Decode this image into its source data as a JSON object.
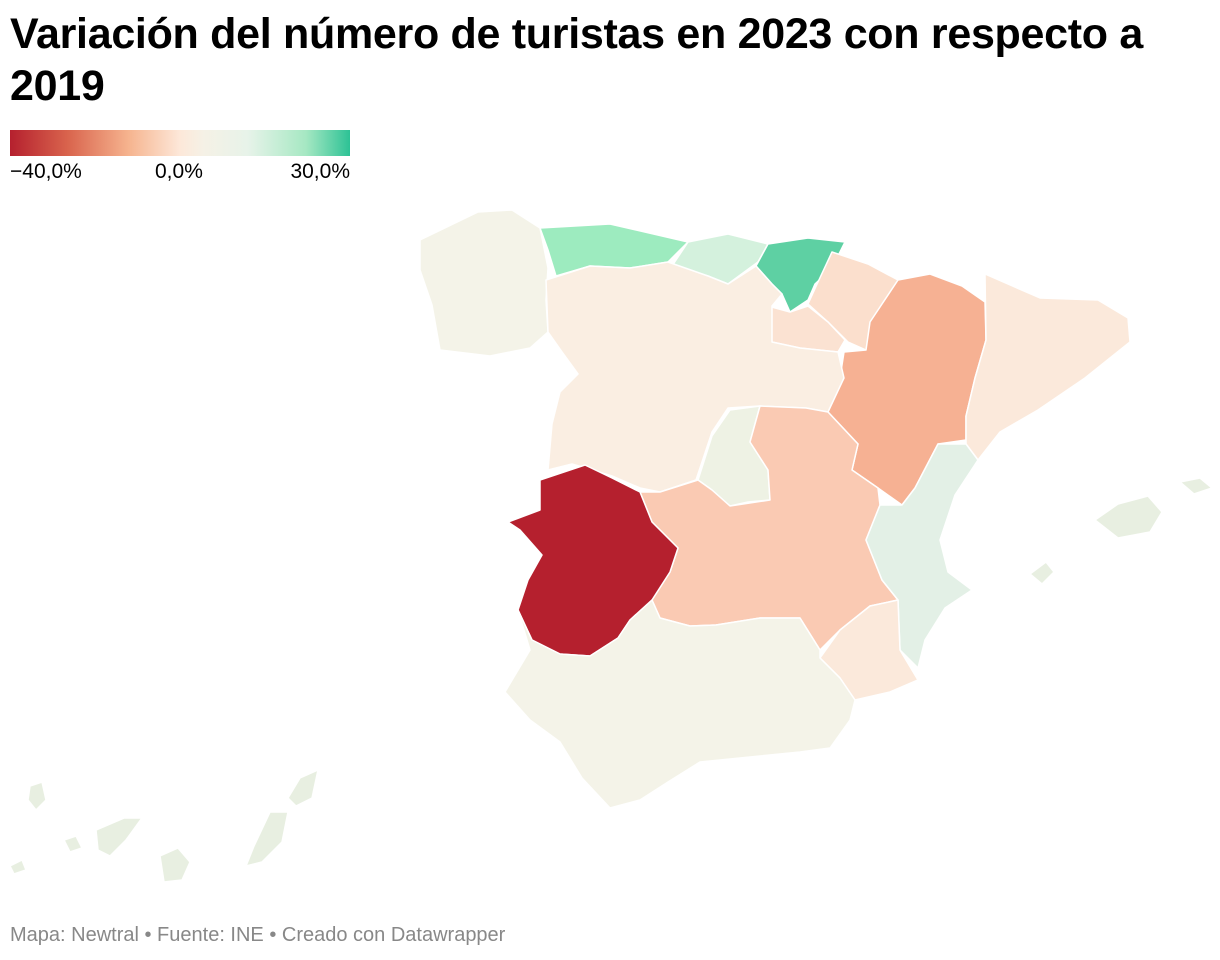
{
  "title": "Variación del número de turistas en 2023 con respecto a 2019",
  "legend": {
    "min_label": "−40,0%",
    "mid_label": "0,0%",
    "max_label": "30,0%",
    "colors": [
      "#b5202e",
      "#f6b48f",
      "#f5f1e6",
      "#a6e8c3",
      "#2dc295"
    ]
  },
  "footer": "Mapa: Newtral • Fuente: INE • Creado con Datawrapper",
  "regions": [
    {
      "name": "Galicia",
      "color": "#f4f3e8"
    },
    {
      "name": "Asturias",
      "color": "#9debbf"
    },
    {
      "name": "Cantabria",
      "color": "#d4f1dd"
    },
    {
      "name": "País Vasco",
      "color": "#5ed0a3"
    },
    {
      "name": "Navarra",
      "color": "#fbdfcd"
    },
    {
      "name": "La Rioja",
      "color": "#fbe2d2"
    },
    {
      "name": "Aragón",
      "color": "#f6b193"
    },
    {
      "name": "Cataluña",
      "color": "#fbe9db"
    },
    {
      "name": "Castilla y León",
      "color": "#faeee2"
    },
    {
      "name": "Madrid",
      "color": "#eef2e4"
    },
    {
      "name": "Castilla-La Mancha",
      "color": "#facab3"
    },
    {
      "name": "Extremadura",
      "color": "#b5202e"
    },
    {
      "name": "Comunitat Valenciana",
      "color": "#e3f0e6"
    },
    {
      "name": "Región de Murcia",
      "color": "#fbe9db"
    },
    {
      "name": "Andalucía",
      "color": "#f4f3e8"
    },
    {
      "name": "Illes Balears",
      "color": "#e8efe1"
    },
    {
      "name": "Canarias",
      "color": "#e8efe1"
    }
  ]
}
